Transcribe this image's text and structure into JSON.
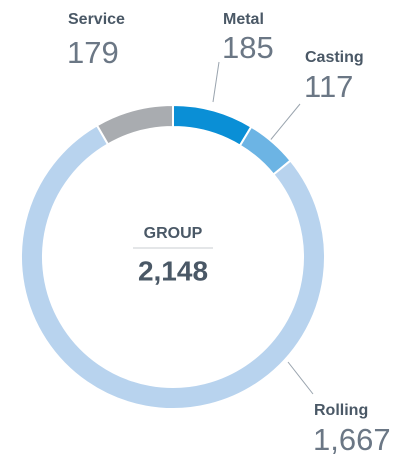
{
  "chart_data": {
    "type": "donut",
    "categories": [
      "Metal",
      "Casting",
      "Rolling",
      "Service"
    ],
    "values": [
      185,
      117,
      1667,
      179
    ],
    "value_labels": [
      "185",
      "117",
      "1,667",
      "179"
    ],
    "colors": [
      "#0a8fd6",
      "#6cb4e4",
      "#b8d3ee",
      "#a9acb0"
    ],
    "center": {
      "label": "GROUP",
      "value": 2148,
      "value_label": "2,148"
    }
  }
}
